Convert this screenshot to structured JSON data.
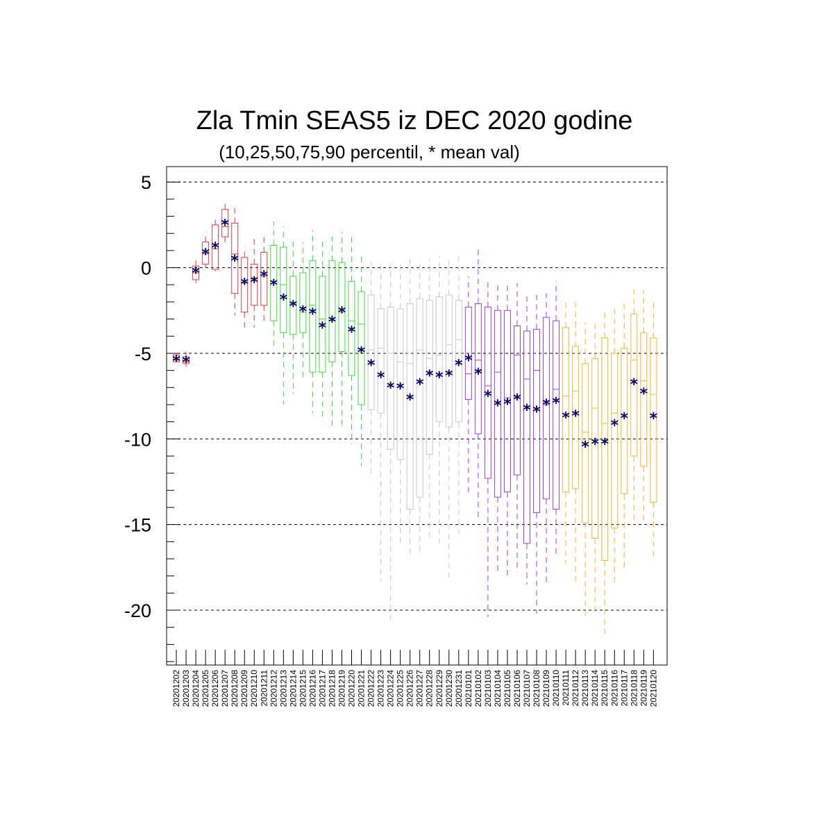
{
  "chart_data": {
    "type": "box",
    "title": "Zla Tmin SEAS5 iz DEC 2020 godine",
    "subtitle": "(10,25,50,75,90 percentil, * mean val)",
    "ylim": [
      -23.2,
      5.9
    ],
    "yticks": [
      5,
      0,
      -5,
      -10,
      -15,
      -20
    ],
    "ytick_labels": [
      "5",
      "0",
      "-5",
      "-10",
      "-15",
      "-20"
    ],
    "grid": "dashed horizontal at major ticks",
    "mean_marker": "*",
    "mean_color": "#000066",
    "group_colors": {
      "red": "#e03c3c",
      "green": "#3cdc3c",
      "gray": "#c8c8c8",
      "purple": "#a23ce6",
      "orange": "#f5b432"
    },
    "categories": [
      "20201202",
      "20201203",
      "20201204",
      "20201205",
      "20201206",
      "20201207",
      "20201208",
      "20201209",
      "20201210",
      "20201211",
      "20201212",
      "20201213",
      "20201214",
      "20201215",
      "20201216",
      "20201217",
      "20201218",
      "20201219",
      "20201220",
      "20201221",
      "20201222",
      "20201223",
      "20201224",
      "20201225",
      "20201226",
      "20201227",
      "20201228",
      "20201229",
      "20201230",
      "20201231",
      "20210101",
      "20210102",
      "20210103",
      "20210104",
      "20210105",
      "20210106",
      "20210107",
      "20210108",
      "20210109",
      "20210110",
      "20210111",
      "20210112",
      "20210113",
      "20210114",
      "20210115",
      "20210116",
      "20210117",
      "20210118",
      "20210119",
      "20210120"
    ],
    "group": [
      "red",
      "red",
      "red",
      "red",
      "red",
      "red",
      "red",
      "red",
      "red",
      "red",
      "green",
      "green",
      "green",
      "green",
      "green",
      "green",
      "green",
      "green",
      "green",
      "green",
      "gray",
      "gray",
      "gray",
      "gray",
      "gray",
      "gray",
      "gray",
      "gray",
      "gray",
      "gray",
      "purple",
      "purple",
      "purple",
      "purple",
      "purple",
      "purple",
      "purple",
      "purple",
      "purple",
      "purple",
      "orange",
      "orange",
      "orange",
      "orange",
      "orange",
      "orange",
      "orange",
      "orange",
      "orange",
      "orange"
    ],
    "p10": [
      -5.4,
      -5.8,
      -0.9,
      0.0,
      -0.2,
      1.3,
      -2.8,
      -3.6,
      -3.5,
      -3.2,
      -4.7,
      -8.0,
      -7.4,
      -6.4,
      -8.5,
      -8.7,
      -9.3,
      -9.4,
      -10.3,
      -11.6,
      -12.3,
      -18.3,
      -20.8,
      -16.3,
      -17.0,
      -16.6,
      -15.8,
      -16.1,
      -18.1,
      -15.8,
      -13.2,
      -14.8,
      -20.4,
      -17.8,
      -18.0,
      -17.8,
      -18.5,
      -20.2,
      -18.5,
      -16.8,
      -17.3,
      -18.3,
      -20.4,
      -20.3,
      -21.5,
      -18.5,
      -17.5,
      -15.0,
      -14.8,
      -16.9
    ],
    "p25": [
      -5.5,
      -5.6,
      -0.7,
      0.2,
      -0.1,
      1.8,
      -1.5,
      -2.6,
      -2.2,
      -2.2,
      -3.1,
      -3.8,
      -3.9,
      -3.8,
      -6.1,
      -6.1,
      -5.5,
      -4.9,
      -6.3,
      -8.0,
      -8.3,
      -8.5,
      -10.6,
      -11.2,
      -14.1,
      -13.4,
      -10.9,
      -9.0,
      -9.3,
      -9.0,
      -7.7,
      -9.7,
      -12.3,
      -13.4,
      -13.1,
      -12.1,
      -16.1,
      -14.3,
      -13.5,
      -14.1,
      -13.1,
      -12.9,
      -14.9,
      -15.8,
      -17.1,
      -15.2,
      -13.2,
      -11.0,
      -11.6,
      -13.7
    ],
    "p50": [
      -5.4,
      -5.5,
      -0.3,
      0.8,
      1.1,
      2.4,
      0.8,
      -0.9,
      -0.6,
      -0.5,
      -0.8,
      -1.0,
      -2.1,
      -2.6,
      -2.2,
      -3.0,
      -3.1,
      -2.6,
      -3.1,
      -3.3,
      -4.8,
      -4.7,
      -5.0,
      -5.5,
      -5.6,
      -4.8,
      -5.3,
      -5.1,
      -4.5,
      -4.2,
      -6.2,
      -5.4,
      -6.9,
      -6.1,
      -7.6,
      -5.1,
      -6.5,
      -6.0,
      -8.0,
      -7.1,
      -7.5,
      -7.2,
      -9.6,
      -8.2,
      -9.1,
      -8.5,
      -8.7,
      -5.4,
      -6.6,
      -7.4
    ],
    "p75": [
      -5.1,
      -5.2,
      0.1,
      1.5,
      2.5,
      3.4,
      2.6,
      0.6,
      0.2,
      0.9,
      1.3,
      1.2,
      -0.5,
      -0.3,
      0.4,
      -0.5,
      0.4,
      0.3,
      -0.8,
      -1.4,
      -1.6,
      -2.4,
      -2.3,
      -2.4,
      -2.1,
      -1.8,
      -1.9,
      -1.7,
      -1.6,
      -1.9,
      -2.3,
      -2.1,
      -2.3,
      -2.5,
      -2.5,
      -3.4,
      -3.7,
      -3.6,
      -2.9,
      -3.1,
      -3.5,
      -4.6,
      -5.6,
      -5.3,
      -4.1,
      -5.0,
      -4.7,
      -2.7,
      -3.8,
      -4.1
    ],
    "p90": [
      -5.0,
      -4.9,
      0.6,
      2.1,
      2.8,
      3.8,
      3.5,
      1.2,
      1.9,
      1.9,
      2.7,
      2.4,
      1.7,
      1.5,
      2.2,
      1.7,
      1.8,
      2.1,
      1.8,
      0.8,
      0.4,
      0.3,
      0.4,
      0.3,
      0.5,
      0.5,
      0.5,
      0.7,
      0.6,
      0.9,
      -0.5,
      1.1,
      -0.8,
      -0.8,
      -0.9,
      -0.9,
      -1.6,
      -1.6,
      -1.5,
      -0.8,
      -2.0,
      -2.0,
      -3.2,
      -3.2,
      -2.6,
      -2.2,
      -1.9,
      -1.2,
      -1.3,
      -1.9
    ],
    "mean": [
      -5.35,
      -5.4,
      -0.2,
      0.9,
      1.25,
      2.6,
      0.5,
      -0.85,
      -0.75,
      -0.4,
      -0.9,
      -1.75,
      -2.15,
      -2.45,
      -2.6,
      -3.4,
      -3.05,
      -2.5,
      -3.65,
      -4.85,
      -5.6,
      -6.3,
      -6.9,
      -6.95,
      -7.6,
      -6.7,
      -6.2,
      -6.3,
      -6.2,
      -5.6,
      -5.3,
      -6.1,
      -7.4,
      -7.95,
      -7.85,
      -7.6,
      -8.2,
      -8.3,
      -7.9,
      -7.8,
      -8.65,
      -8.55,
      -10.35,
      -10.2,
      -10.2,
      -9.1,
      -8.7,
      -6.7,
      -7.25,
      -8.7
    ]
  }
}
